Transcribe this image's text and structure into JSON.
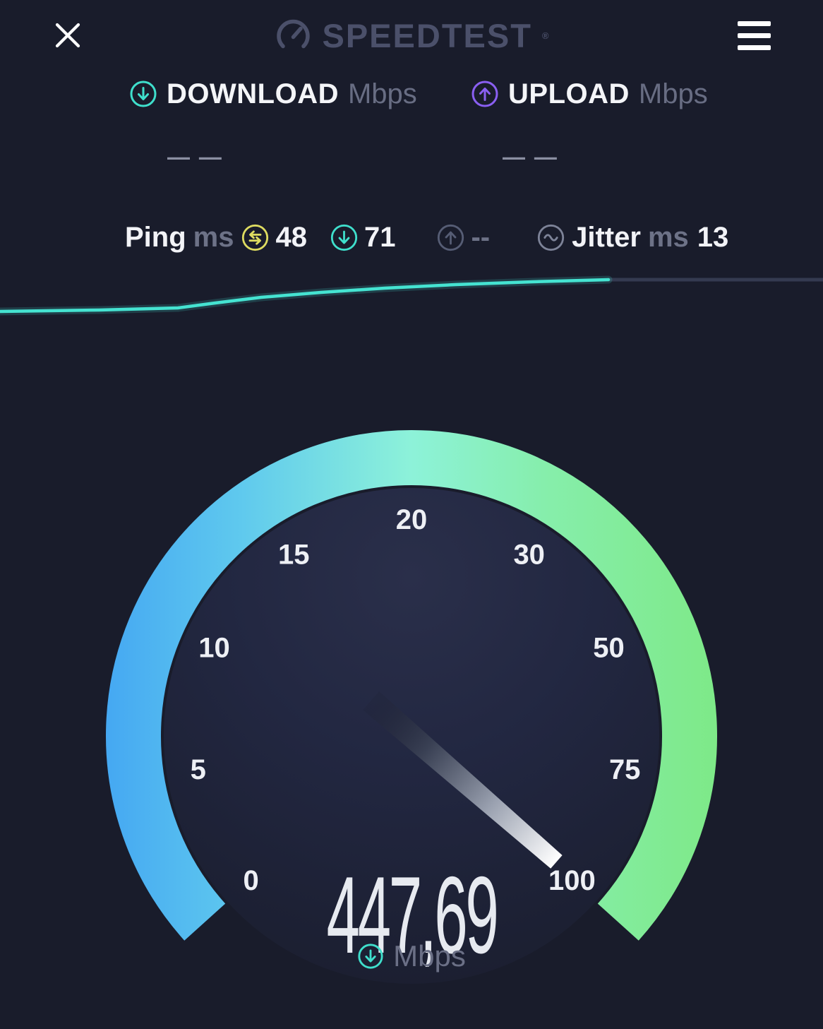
{
  "header": {
    "logo_text": "SPEEDTEST",
    "logo_trademark": "®"
  },
  "download": {
    "label": "DOWNLOAD",
    "unit": "Mbps",
    "value": "— —"
  },
  "upload": {
    "label": "UPLOAD",
    "unit": "Mbps",
    "value": "— —"
  },
  "metrics": {
    "ping": {
      "label": "Ping",
      "unit": "ms",
      "value": "48"
    },
    "download_latency": {
      "value": "71"
    },
    "upload_latency": {
      "value": "--"
    },
    "jitter": {
      "label": "Jitter",
      "unit": "ms",
      "value": "13"
    }
  },
  "graph": {
    "teal_points": [
      [
        0,
        441
      ],
      [
        140,
        439
      ],
      [
        252,
        436
      ],
      [
        305,
        429
      ],
      [
        370,
        421
      ],
      [
        455,
        414
      ],
      [
        545,
        408
      ],
      [
        645,
        403
      ],
      [
        755,
        399
      ],
      [
        862,
        396
      ]
    ],
    "gray_points": [
      [
        862,
        396
      ],
      [
        1166,
        396
      ]
    ],
    "line_color": "#45e3d1",
    "trail_color": "#343a50"
  },
  "gauge": {
    "ticks": [
      "0",
      "5",
      "10",
      "15",
      "20",
      "30",
      "50",
      "75",
      "100"
    ],
    "value": "447,69",
    "unit": "Mbps",
    "arc_colors": [
      "#45a8f2",
      "#5fc9ee",
      "#8df2d9",
      "#86eeab",
      "#7ee988"
    ]
  },
  "colors": {
    "background": "#191c2b",
    "accent_teal": "#3fdfcc",
    "accent_purple": "#8a5ff2",
    "accent_yellow": "#dedc60",
    "icon_gray": "#565d75",
    "text_muted": "#6d7287",
    "text_white": "#f2f3f7"
  }
}
